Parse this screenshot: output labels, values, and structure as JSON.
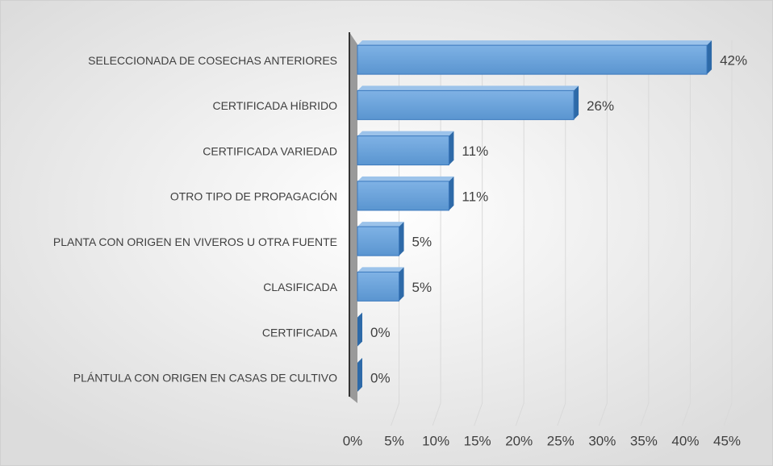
{
  "chart_data": {
    "type": "bar",
    "categories": [
      "SELECCIONADA DE COSECHAS ANTERIORES",
      "CERTIFICADA HÍBRIDO",
      "CERTIFICADA VARIEDAD",
      "OTRO TIPO DE PROPAGACIÓN",
      "PLANTA CON ORIGEN EN VIVEROS U OTRA FUENTE",
      "CLASIFICADA",
      "CERTIFICADA",
      "PLÁNTULA CON ORIGEN EN CASAS DE CULTIVO"
    ],
    "values": [
      42,
      26,
      11,
      11,
      5,
      5,
      0,
      0
    ],
    "value_labels": [
      "42%",
      "26%",
      "11%",
      "11%",
      "5%",
      "5%",
      "0%",
      "0%"
    ],
    "color": "#5b9bd5",
    "xlim": [
      0,
      45
    ],
    "xticks": [
      {
        "value": 0,
        "label": "0%"
      },
      {
        "value": 5,
        "label": "5%"
      },
      {
        "value": 10,
        "label": "10%"
      },
      {
        "value": 15,
        "label": "15%"
      },
      {
        "value": 20,
        "label": "20%"
      },
      {
        "value": 25,
        "label": "25%"
      },
      {
        "value": 30,
        "label": "30%"
      },
      {
        "value": 35,
        "label": "35%"
      },
      {
        "value": 40,
        "label": "40%"
      },
      {
        "value": 45,
        "label": "45%"
      }
    ],
    "grid": true
  }
}
